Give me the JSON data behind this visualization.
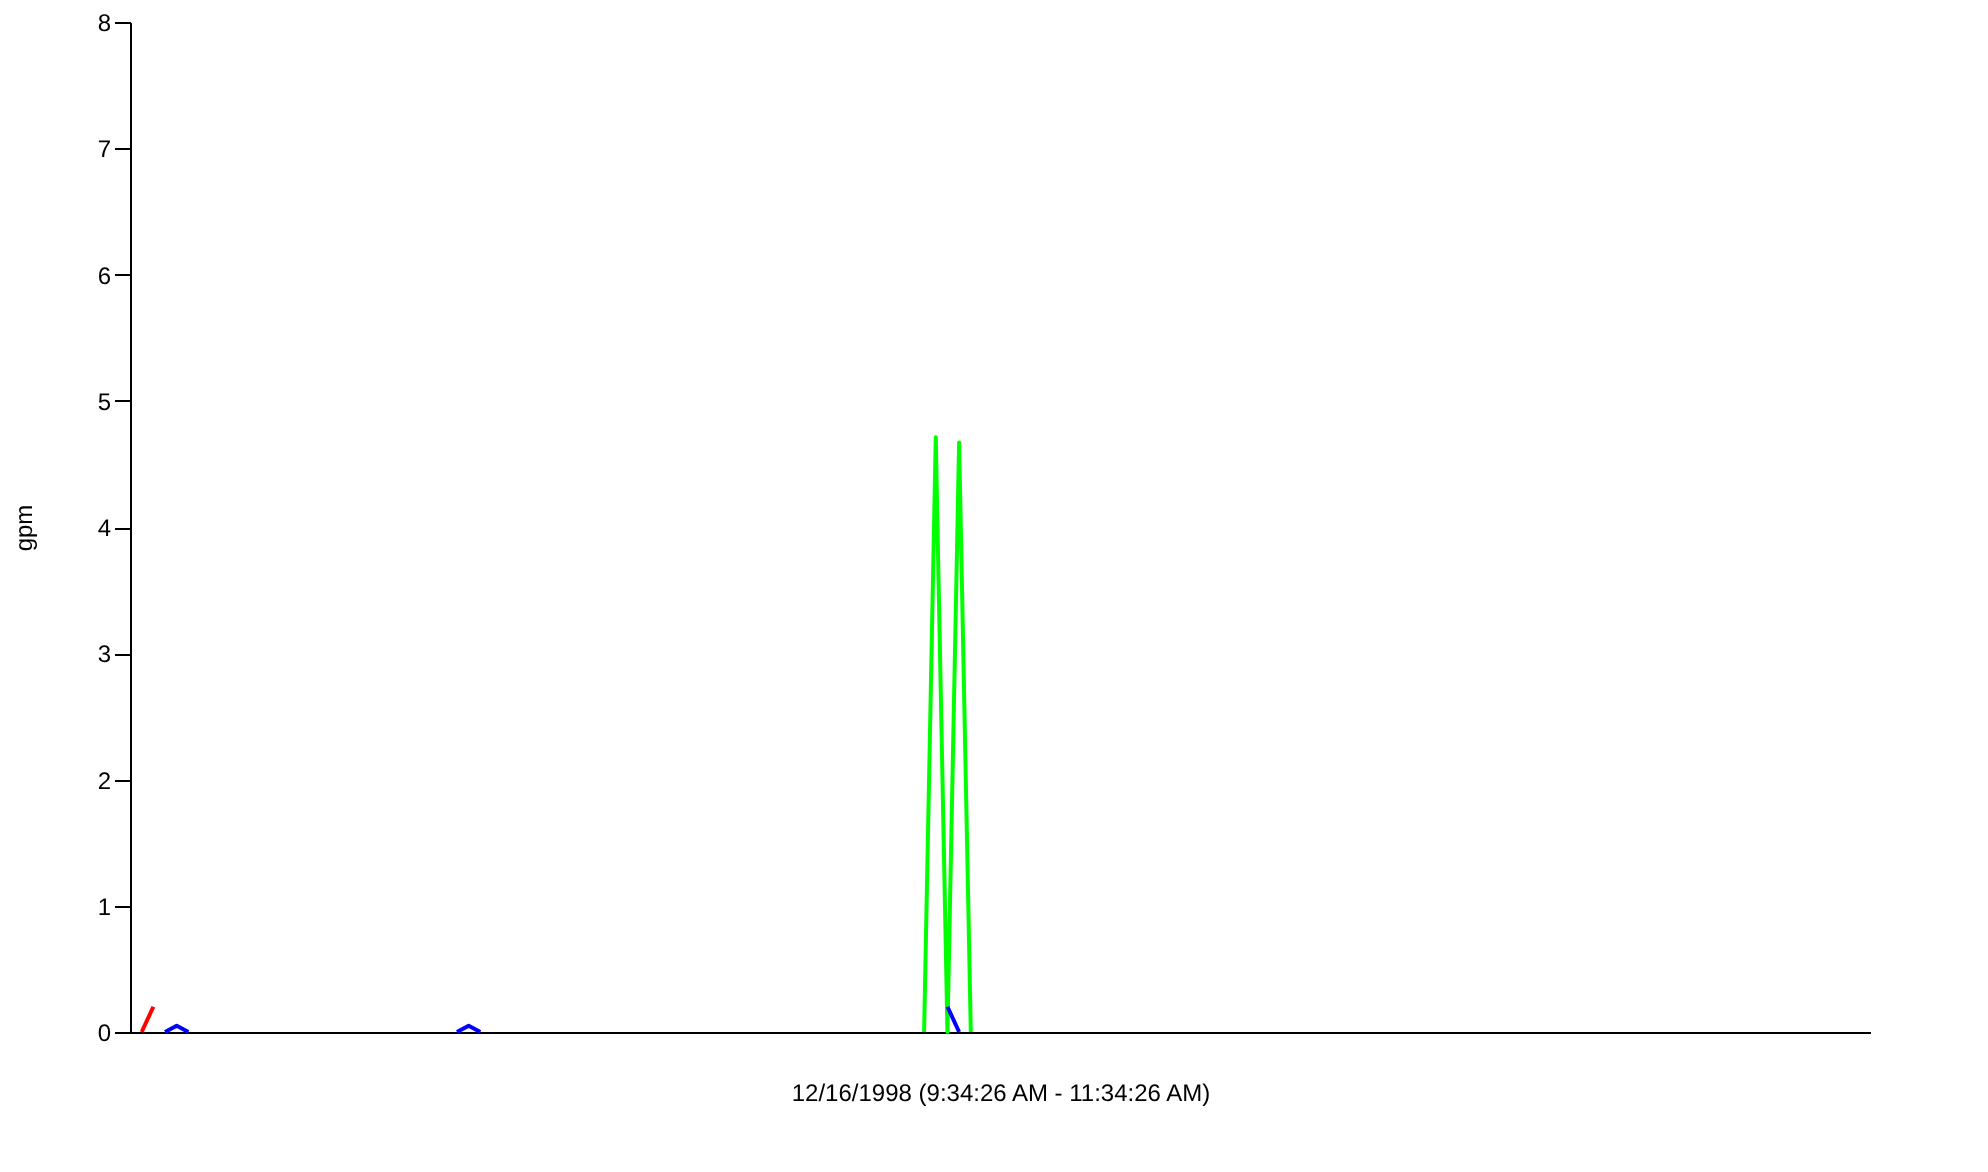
{
  "chart_data": {
    "type": "line",
    "xlabel": "12/16/1998 (9:34:26 AM - 11:34:26 AM)",
    "ylabel": "gpm",
    "categories": [
      null,
      null,
      null,
      null,
      null,
      null,
      null,
      null,
      null,
      null,
      null,
      null,
      null,
      null,
      null,
      null,
      null,
      null,
      null,
      null,
      null,
      null,
      null,
      null,
      null,
      null,
      null,
      null,
      null,
      null,
      null,
      null,
      null,
      null,
      null,
      null,
      null,
      null,
      null,
      null,
      null,
      null,
      null,
      null,
      null,
      null,
      null,
      null,
      null,
      null,
      null,
      null,
      null,
      null,
      null,
      null,
      null,
      null,
      null,
      null,
      null,
      null,
      null,
      null,
      null,
      null,
      null,
      null,
      null,
      null,
      null,
      null,
      null,
      null,
      null,
      null,
      null,
      null,
      null,
      null,
      null,
      null,
      null,
      null,
      null,
      null,
      null,
      null,
      null,
      null,
      null,
      null,
      null,
      null,
      null,
      null,
      null,
      null,
      null,
      null,
      null,
      null,
      null,
      null,
      null,
      null,
      null,
      null,
      null,
      null,
      null,
      null,
      null,
      null,
      null,
      null,
      null,
      null,
      null,
      null,
      null,
      null,
      null,
      null,
      null,
      null,
      null,
      null,
      null,
      null,
      null,
      null,
      null,
      null,
      null,
      null,
      null,
      null,
      null,
      null,
      null,
      null,
      null,
      null,
      null,
      null,
      null,
      null,
      null,
      null
    ],
    "series": [
      {
        "color": "#00ff00",
        "values": [
          null,
          null,
          null,
          null,
          null,
          null,
          null,
          null,
          null,
          null,
          null,
          null,
          null,
          null,
          null,
          null,
          null,
          null,
          null,
          null,
          null,
          null,
          null,
          null,
          null,
          null,
          null,
          null,
          null,
          null,
          null,
          null,
          null,
          null,
          null,
          null,
          null,
          null,
          null,
          null,
          null,
          null,
          null,
          null,
          null,
          null,
          null,
          null,
          null,
          null,
          null,
          null,
          null,
          null,
          null,
          null,
          null,
          null,
          null,
          null,
          null,
          null,
          null,
          null,
          null,
          null,
          null,
          null,
          0,
          4.71,
          0,
          4.67,
          0,
          null,
          null,
          null,
          null,
          null,
          null,
          null,
          null,
          null,
          null,
          null,
          null,
          null,
          null,
          null,
          null,
          null,
          null,
          null,
          null,
          null,
          null,
          null,
          null,
          null,
          null,
          null,
          null,
          null,
          null,
          null,
          null,
          null,
          null,
          null,
          null,
          null,
          null,
          null,
          null,
          null,
          null,
          null,
          null,
          null,
          null,
          null,
          null,
          null,
          null,
          null,
          null,
          null,
          null,
          null,
          null,
          null,
          null,
          null,
          null,
          null,
          null,
          null,
          null,
          null,
          null,
          null,
          null,
          null,
          null,
          null,
          null,
          null,
          null,
          null,
          null,
          null
        ]
      },
      {
        "color": "#ff0000",
        "values": [
          null,
          0,
          0.2,
          null,
          null,
          null,
          null,
          null,
          null,
          null,
          null,
          null,
          null,
          null,
          null,
          null,
          null,
          null,
          null,
          null,
          null,
          null,
          null,
          null,
          null,
          null,
          null,
          null,
          null,
          null,
          null,
          null,
          null,
          null,
          null,
          null,
          null,
          null,
          null,
          null,
          null,
          null,
          null,
          null,
          null,
          null,
          null,
          null,
          null,
          null,
          null,
          null,
          null,
          null,
          null,
          null,
          null,
          null,
          null,
          null,
          null,
          null,
          null,
          null,
          null,
          null,
          null,
          null,
          null,
          null,
          null,
          null,
          null,
          null,
          null,
          null,
          null,
          null,
          null,
          null,
          null,
          null,
          null,
          null,
          null,
          null,
          null,
          null,
          null,
          null,
          null,
          null,
          null,
          null,
          null,
          null,
          null,
          null,
          null,
          null,
          null,
          null,
          null,
          null,
          null,
          null,
          null,
          null,
          null,
          null,
          null,
          null,
          null,
          null,
          null,
          null,
          null,
          null,
          null,
          null,
          null,
          null,
          null,
          null,
          null,
          null,
          null,
          null,
          null,
          null,
          null,
          null,
          null,
          null,
          null,
          null,
          null,
          null,
          null,
          null,
          null,
          null,
          null,
          null,
          null,
          null,
          null,
          null,
          null,
          null
        ]
      },
      {
        "color": "#0000ff",
        "values": [
          null,
          null,
          null,
          0,
          0.05,
          0,
          null,
          null,
          null,
          null,
          null,
          null,
          null,
          null,
          null,
          null,
          null,
          null,
          null,
          null,
          null,
          null,
          null,
          null,
          null,
          null,
          null,
          null,
          0,
          0.05,
          0,
          null,
          null,
          null,
          null,
          null,
          null,
          null,
          null,
          null,
          null,
          null,
          null,
          null,
          null,
          null,
          null,
          null,
          null,
          null,
          null,
          null,
          null,
          null,
          null,
          null,
          null,
          null,
          null,
          null,
          null,
          null,
          null,
          null,
          null,
          null,
          null,
          null,
          null,
          null,
          0.2,
          0,
          null,
          null,
          null,
          null,
          null,
          null,
          null,
          null,
          null,
          null,
          null,
          null,
          null,
          null,
          null,
          null,
          null,
          null,
          null,
          null,
          null,
          null,
          null,
          null,
          null,
          null,
          null,
          null,
          null,
          null,
          null,
          null,
          null,
          null,
          null,
          null,
          null,
          null,
          null,
          null,
          null,
          null,
          null,
          null,
          null,
          null,
          null,
          null,
          null,
          null,
          null,
          null,
          null,
          null,
          null,
          null,
          null,
          null,
          null,
          null,
          null,
          null,
          null,
          null,
          null,
          null,
          null,
          null,
          null,
          null,
          null,
          null,
          null,
          null,
          null,
          null,
          null,
          null
        ]
      }
    ],
    "ylim": [
      0,
      8
    ],
    "yticks": [
      0,
      1,
      2,
      3,
      4,
      5,
      6,
      7,
      8
    ],
    "grid": false,
    "legend": false,
    "tick_labels": "y"
  }
}
